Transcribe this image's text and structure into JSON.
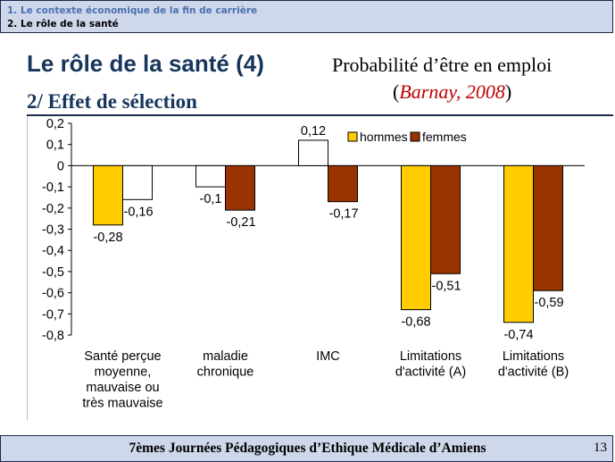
{
  "header": {
    "section_line": "1. Le contexte économique de la fin de carrière",
    "current_line": "2. Le rôle de la santé"
  },
  "slide": {
    "title": "Le rôle de la santé (4)",
    "subtitle": "2/ Effet de sélection",
    "right_title": "Probabilité d’être en emploi",
    "right_paren_open": "(",
    "right_citation": "Barnay, 2008",
    "right_paren_close": ")"
  },
  "chart_data": {
    "type": "bar",
    "categories": [
      [
        "Santé perçue",
        "moyenne,",
        "mauvaise ou",
        "très mauvaise"
      ],
      [
        "maladie",
        "chronique"
      ],
      [
        "IMC"
      ],
      [
        "Limitations",
        "d'activité (A)"
      ],
      [
        "Limitations",
        "d'activité (B)"
      ]
    ],
    "series": [
      {
        "name": "hommes",
        "values": [
          -0.28,
          -0.1,
          0.12,
          -0.68,
          -0.74
        ],
        "labels": [
          "-0,28",
          "-0,1",
          "0,12",
          "-0,68",
          "-0,74"
        ],
        "color": "#ffcc00"
      },
      {
        "name": "femmes",
        "values": [
          -0.16,
          -0.21,
          -0.17,
          -0.51,
          -0.59
        ],
        "labels": [
          "-0,16",
          "-0,21",
          "-0,17",
          "-0,51",
          "-0,59"
        ],
        "color": "#993300"
      }
    ],
    "bar_colors": [
      [
        "#ffcc00",
        "#ffffff"
      ],
      [
        "#ffffff",
        "#993300"
      ],
      [
        "#ffffff",
        "#993300"
      ],
      [
        "#ffcc00",
        "#993300"
      ],
      [
        "#ffcc00",
        "#993300"
      ]
    ],
    "y_ticks": [
      0.2,
      0.1,
      0,
      -0.1,
      -0.2,
      -0.3,
      -0.4,
      -0.5,
      -0.6,
      -0.7,
      -0.8
    ],
    "y_tick_labels": [
      "0,2",
      "0,1",
      "0",
      "-0,1",
      "-0,2",
      "-0,3",
      "-0,4",
      "-0,5",
      "-0,6",
      "-0,7",
      "-0,8"
    ],
    "ylim": [
      -0.8,
      0.2
    ],
    "legend_position": "top-right",
    "grid": false
  },
  "footer": {
    "text": "7èmes Journées Pédagogiques  d’Ethique Médicale d’Amiens",
    "page_number": "13"
  }
}
